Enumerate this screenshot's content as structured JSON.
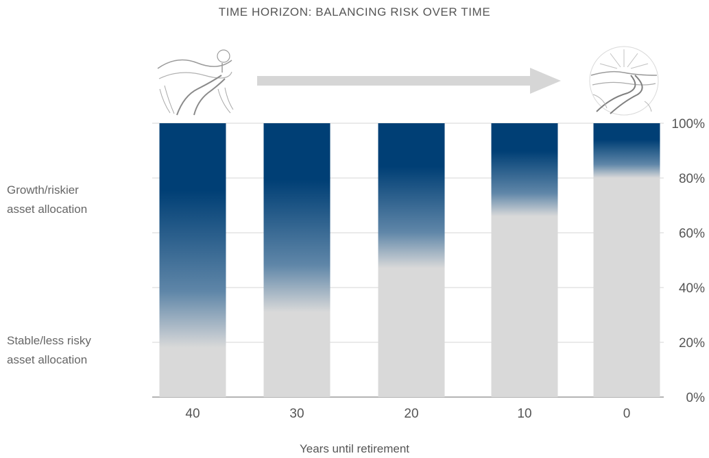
{
  "chart_data": {
    "type": "bar",
    "title": "TIME HORIZON: BALANCING RISK OVER TIME",
    "xlabel": "Years until retirement",
    "ylabel": "",
    "categories": [
      "40",
      "30",
      "20",
      "10",
      "0"
    ],
    "series": [
      {
        "name": "Growth/riskier asset allocation",
        "values": [
          82,
          69,
          53,
          34,
          20
        ]
      },
      {
        "name": "Stable/less risky asset allocation",
        "values": [
          18,
          31,
          47,
          66,
          80
        ]
      }
    ],
    "ylim": [
      0,
      100
    ],
    "yticks": [
      "0%",
      "20%",
      "40%",
      "60%",
      "80%",
      "100%"
    ],
    "grid": true,
    "stacked": true,
    "colors": {
      "growth": "#003f75",
      "stable": "#d9d9d9",
      "grid": "#d4d4d4",
      "arrow": "#d6d6d6",
      "text": "#555555"
    }
  },
  "labels": {
    "growth_line1": "Growth/riskier",
    "growth_line2": "asset allocation",
    "stable_line1": "Stable/less risky",
    "stable_line2": "asset allocation"
  },
  "illustrations": {
    "start_icon": "winding-road-start-icon",
    "end_icon": "road-to-sunrise-icon",
    "arrow_icon": "right-arrow-icon"
  }
}
